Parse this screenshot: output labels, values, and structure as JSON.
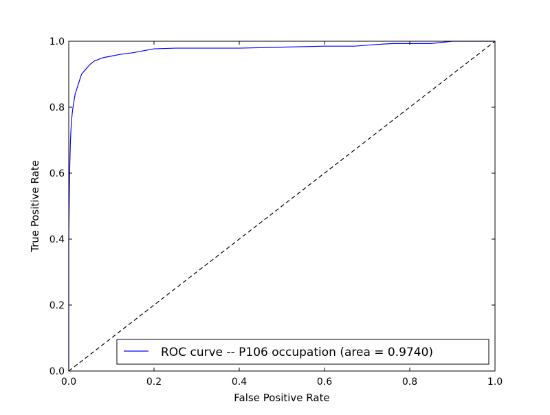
{
  "chart_data": {
    "type": "line",
    "title": "",
    "xlabel": "False Positive Rate",
    "ylabel": "True Positive Rate",
    "xlim": [
      0.0,
      1.0
    ],
    "ylim": [
      0.0,
      1.0
    ],
    "xticks": [
      "0.0",
      "0.2",
      "0.4",
      "0.6",
      "0.8",
      "1.0"
    ],
    "yticks": [
      "0.0",
      "0.2",
      "0.4",
      "0.6",
      "0.8",
      "1.0"
    ],
    "grid": false,
    "legend_position": "lower-right",
    "series": [
      {
        "name": "ROC curve -- P106 occupation (area = 0.9740)",
        "color": "#0000ff",
        "style": "solid",
        "x": [
          0.0,
          0.0,
          0.002,
          0.004,
          0.006,
          0.008,
          0.01,
          0.015,
          0.02,
          0.025,
          0.03,
          0.04,
          0.05,
          0.06,
          0.07,
          0.08,
          0.1,
          0.12,
          0.15,
          0.2,
          0.25,
          0.3,
          0.4,
          0.5,
          0.6,
          0.67,
          0.72,
          0.76,
          0.8,
          0.85,
          0.9,
          0.95,
          1.0
        ],
        "y": [
          0.0,
          0.4,
          0.6,
          0.7,
          0.75,
          0.78,
          0.8,
          0.84,
          0.86,
          0.88,
          0.9,
          0.915,
          0.93,
          0.94,
          0.945,
          0.95,
          0.955,
          0.96,
          0.965,
          0.977,
          0.979,
          0.979,
          0.979,
          0.982,
          0.985,
          0.985,
          0.99,
          0.993,
          0.993,
          0.993,
          1.0,
          1.0,
          1.0
        ]
      },
      {
        "name": "",
        "color": "#000000",
        "style": "dashed",
        "x": [
          0.0,
          1.0
        ],
        "y": [
          0.0,
          1.0
        ]
      }
    ],
    "legend": [
      "ROC curve -- P106 occupation (area = 0.9740)"
    ]
  }
}
